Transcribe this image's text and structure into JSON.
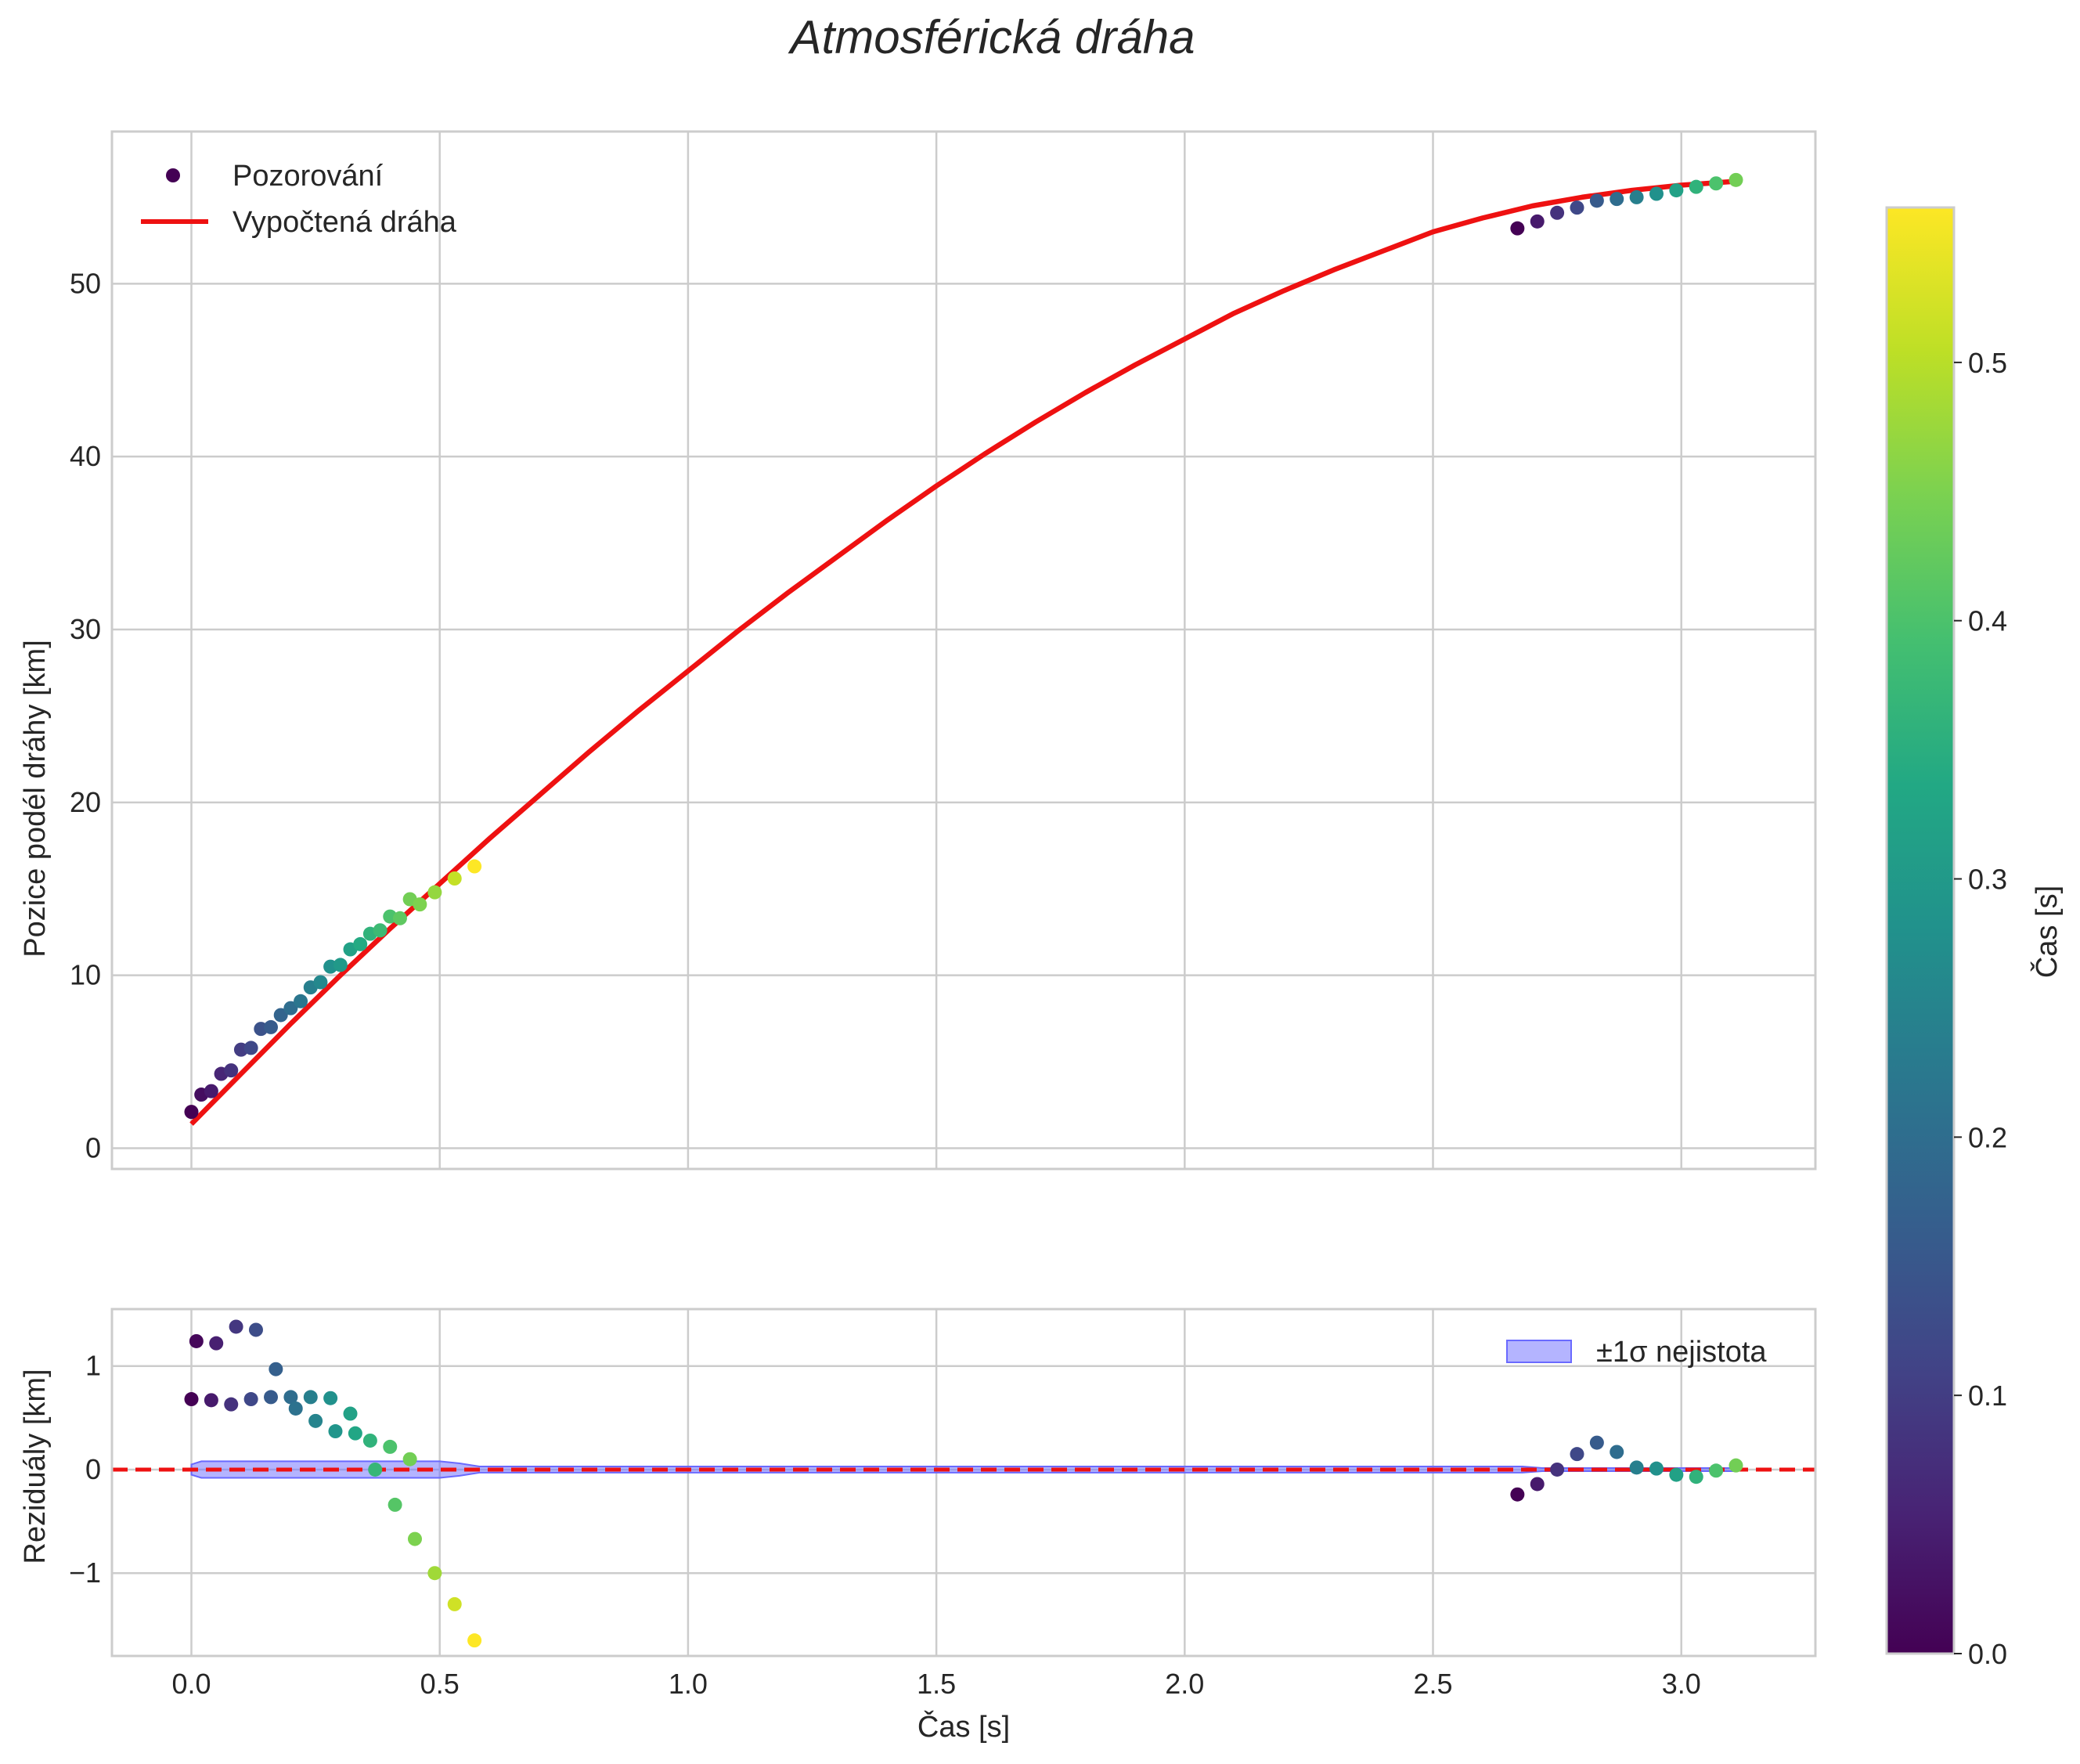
{
  "chart_data": {
    "type": "scatter",
    "title": "Atmosférická dráha",
    "colormap": "viridis",
    "colorbar": {
      "label": "Čas [s]",
      "range": [
        0.0,
        0.56
      ],
      "ticks": [
        0.0,
        0.1,
        0.2,
        0.3,
        0.4,
        0.5
      ],
      "tick_labels": [
        "0.0",
        "0.1",
        "0.2",
        "0.3",
        "0.4",
        "0.5"
      ]
    },
    "top": {
      "ylabel": "Pozice podél dráhy [km]",
      "xlim": [
        -0.16,
        3.27
      ],
      "ylim": [
        -1.2,
        58.8
      ],
      "xticks": [
        0.0,
        0.5,
        1.0,
        1.5,
        2.0,
        2.5,
        3.0
      ],
      "yticks": [
        0,
        10,
        20,
        30,
        40,
        50
      ],
      "ytick_labels": [
        "0",
        "10",
        "20",
        "30",
        "40",
        "50"
      ],
      "legend": {
        "location": "top-left",
        "observations_label": "Pozorování",
        "fit_label": "Vypočtená dráha"
      },
      "fit_color": "#ee1111",
      "fit_curve": {
        "x": [
          0.0,
          0.1,
          0.2,
          0.3,
          0.4,
          0.5,
          0.6,
          0.7,
          0.8,
          0.9,
          1.0,
          1.1,
          1.2,
          1.3,
          1.4,
          1.5,
          1.6,
          1.7,
          1.8,
          1.9,
          2.0,
          2.1,
          2.2,
          2.3,
          2.4,
          2.5,
          2.6,
          2.7,
          2.8,
          2.9,
          3.0,
          3.1
        ],
        "y": [
          1.4,
          4.3,
          7.2,
          10.0,
          12.7,
          15.3,
          17.9,
          20.4,
          22.9,
          25.3,
          27.6,
          29.9,
          32.1,
          34.2,
          36.3,
          38.3,
          40.2,
          42.0,
          43.7,
          45.3,
          46.8,
          48.3,
          49.6,
          50.8,
          51.9,
          53.0,
          53.8,
          54.5,
          55.0,
          55.4,
          55.7,
          55.9
        ]
      },
      "observations": [
        {
          "t": 0.0,
          "y": 2.1,
          "c": 0.0
        },
        {
          "t": 0.02,
          "y": 3.1,
          "c": 0.02
        },
        {
          "t": 0.04,
          "y": 3.3,
          "c": 0.04
        },
        {
          "t": 0.06,
          "y": 4.3,
          "c": 0.06
        },
        {
          "t": 0.08,
          "y": 4.5,
          "c": 0.08
        },
        {
          "t": 0.1,
          "y": 5.7,
          "c": 0.1
        },
        {
          "t": 0.12,
          "y": 5.8,
          "c": 0.12
        },
        {
          "t": 0.14,
          "y": 6.9,
          "c": 0.14
        },
        {
          "t": 0.16,
          "y": 7.0,
          "c": 0.16
        },
        {
          "t": 0.18,
          "y": 7.7,
          "c": 0.18
        },
        {
          "t": 0.2,
          "y": 8.1,
          "c": 0.2
        },
        {
          "t": 0.22,
          "y": 8.5,
          "c": 0.22
        },
        {
          "t": 0.24,
          "y": 9.3,
          "c": 0.24
        },
        {
          "t": 0.26,
          "y": 9.6,
          "c": 0.26
        },
        {
          "t": 0.28,
          "y": 10.5,
          "c": 0.28
        },
        {
          "t": 0.3,
          "y": 10.6,
          "c": 0.3
        },
        {
          "t": 0.32,
          "y": 11.5,
          "c": 0.32
        },
        {
          "t": 0.34,
          "y": 11.8,
          "c": 0.34
        },
        {
          "t": 0.36,
          "y": 12.4,
          "c": 0.36
        },
        {
          "t": 0.38,
          "y": 12.6,
          "c": 0.38
        },
        {
          "t": 0.4,
          "y": 13.4,
          "c": 0.4
        },
        {
          "t": 0.42,
          "y": 13.3,
          "c": 0.42
        },
        {
          "t": 0.44,
          "y": 14.4,
          "c": 0.44
        },
        {
          "t": 0.46,
          "y": 14.1,
          "c": 0.45
        },
        {
          "t": 0.49,
          "y": 14.8,
          "c": 0.47
        },
        {
          "t": 0.53,
          "y": 15.6,
          "c": 0.51
        },
        {
          "t": 0.57,
          "y": 16.3,
          "c": 0.56
        },
        {
          "t": 2.67,
          "y": 53.2,
          "c": 0.0
        },
        {
          "t": 2.71,
          "y": 53.6,
          "c": 0.04
        },
        {
          "t": 2.75,
          "y": 54.1,
          "c": 0.08
        },
        {
          "t": 2.79,
          "y": 54.4,
          "c": 0.12
        },
        {
          "t": 2.83,
          "y": 54.8,
          "c": 0.16
        },
        {
          "t": 2.87,
          "y": 54.9,
          "c": 0.2
        },
        {
          "t": 2.91,
          "y": 55.0,
          "c": 0.24
        },
        {
          "t": 2.95,
          "y": 55.2,
          "c": 0.28
        },
        {
          "t": 2.99,
          "y": 55.4,
          "c": 0.32
        },
        {
          "t": 3.03,
          "y": 55.6,
          "c": 0.36
        },
        {
          "t": 3.07,
          "y": 55.8,
          "c": 0.4
        },
        {
          "t": 3.11,
          "y": 56.0,
          "c": 0.44
        }
      ]
    },
    "bottom": {
      "xlabel": "Čas [s]",
      "ylabel": "Reziduály [km]",
      "xlim": [
        -0.16,
        3.27
      ],
      "ylim": [
        -1.8,
        1.55
      ],
      "xticks": [
        0.0,
        0.5,
        1.0,
        1.5,
        2.0,
        2.5,
        3.0
      ],
      "xtick_labels": [
        "0.0",
        "0.5",
        "1.0",
        "1.5",
        "2.0",
        "2.5",
        "3.0"
      ],
      "yticks": [
        -1,
        0,
        1
      ],
      "ytick_labels": [
        "−1",
        "0",
        "1"
      ],
      "legend": {
        "location": "top-right",
        "band_label": "±1σ nejistota"
      },
      "band_color": "#6a6aff",
      "zero_line_color": "#ee1111",
      "uncertainty_band": {
        "x": [
          0.0,
          0.02,
          0.5,
          0.54,
          0.58,
          2.66,
          2.68,
          2.72,
          3.11
        ],
        "upper": [
          0.05,
          0.08,
          0.08,
          0.06,
          0.03,
          0.03,
          0.03,
          0.015,
          0.015
        ],
        "lower": [
          -0.05,
          -0.08,
          -0.08,
          -0.06,
          -0.03,
          -0.03,
          -0.03,
          -0.015,
          -0.015
        ]
      },
      "residuals": [
        {
          "t": 0.0,
          "r": 0.68,
          "c": 0.0
        },
        {
          "t": 0.01,
          "r": 1.24,
          "c": 0.01
        },
        {
          "t": 0.04,
          "r": 0.67,
          "c": 0.04
        },
        {
          "t": 0.05,
          "r": 1.22,
          "c": 0.05
        },
        {
          "t": 0.08,
          "r": 0.63,
          "c": 0.08
        },
        {
          "t": 0.09,
          "r": 1.38,
          "c": 0.09
        },
        {
          "t": 0.12,
          "r": 0.68,
          "c": 0.12
        },
        {
          "t": 0.13,
          "r": 1.35,
          "c": 0.13
        },
        {
          "t": 0.16,
          "r": 0.7,
          "c": 0.16
        },
        {
          "t": 0.17,
          "r": 0.97,
          "c": 0.17
        },
        {
          "t": 0.2,
          "r": 0.7,
          "c": 0.2
        },
        {
          "t": 0.21,
          "r": 0.59,
          "c": 0.21
        },
        {
          "t": 0.24,
          "r": 0.7,
          "c": 0.24
        },
        {
          "t": 0.25,
          "r": 0.47,
          "c": 0.25
        },
        {
          "t": 0.28,
          "r": 0.69,
          "c": 0.28
        },
        {
          "t": 0.29,
          "r": 0.37,
          "c": 0.29
        },
        {
          "t": 0.32,
          "r": 0.54,
          "c": 0.32
        },
        {
          "t": 0.33,
          "r": 0.35,
          "c": 0.33
        },
        {
          "t": 0.36,
          "r": 0.28,
          "c": 0.36
        },
        {
          "t": 0.37,
          "r": 0.0,
          "c": 0.37
        },
        {
          "t": 0.4,
          "r": 0.22,
          "c": 0.4
        },
        {
          "t": 0.41,
          "r": -0.34,
          "c": 0.41
        },
        {
          "t": 0.44,
          "r": 0.1,
          "c": 0.44
        },
        {
          "t": 0.45,
          "r": -0.67,
          "c": 0.45
        },
        {
          "t": 0.49,
          "r": -1.0,
          "c": 0.48
        },
        {
          "t": 0.53,
          "r": -1.3,
          "c": 0.52
        },
        {
          "t": 0.57,
          "r": -1.65,
          "c": 0.56
        },
        {
          "t": 2.67,
          "r": -0.24,
          "c": 0.0
        },
        {
          "t": 2.71,
          "r": -0.14,
          "c": 0.04
        },
        {
          "t": 2.75,
          "r": 0.0,
          "c": 0.08
        },
        {
          "t": 2.79,
          "r": 0.15,
          "c": 0.12
        },
        {
          "t": 2.83,
          "r": 0.26,
          "c": 0.16
        },
        {
          "t": 2.87,
          "r": 0.17,
          "c": 0.2
        },
        {
          "t": 2.91,
          "r": 0.02,
          "c": 0.24
        },
        {
          "t": 2.95,
          "r": 0.01,
          "c": 0.28
        },
        {
          "t": 2.99,
          "r": -0.05,
          "c": 0.32
        },
        {
          "t": 3.03,
          "r": -0.07,
          "c": 0.36
        },
        {
          "t": 3.07,
          "r": -0.01,
          "c": 0.4
        },
        {
          "t": 3.11,
          "r": 0.04,
          "c": 0.44
        }
      ]
    }
  }
}
